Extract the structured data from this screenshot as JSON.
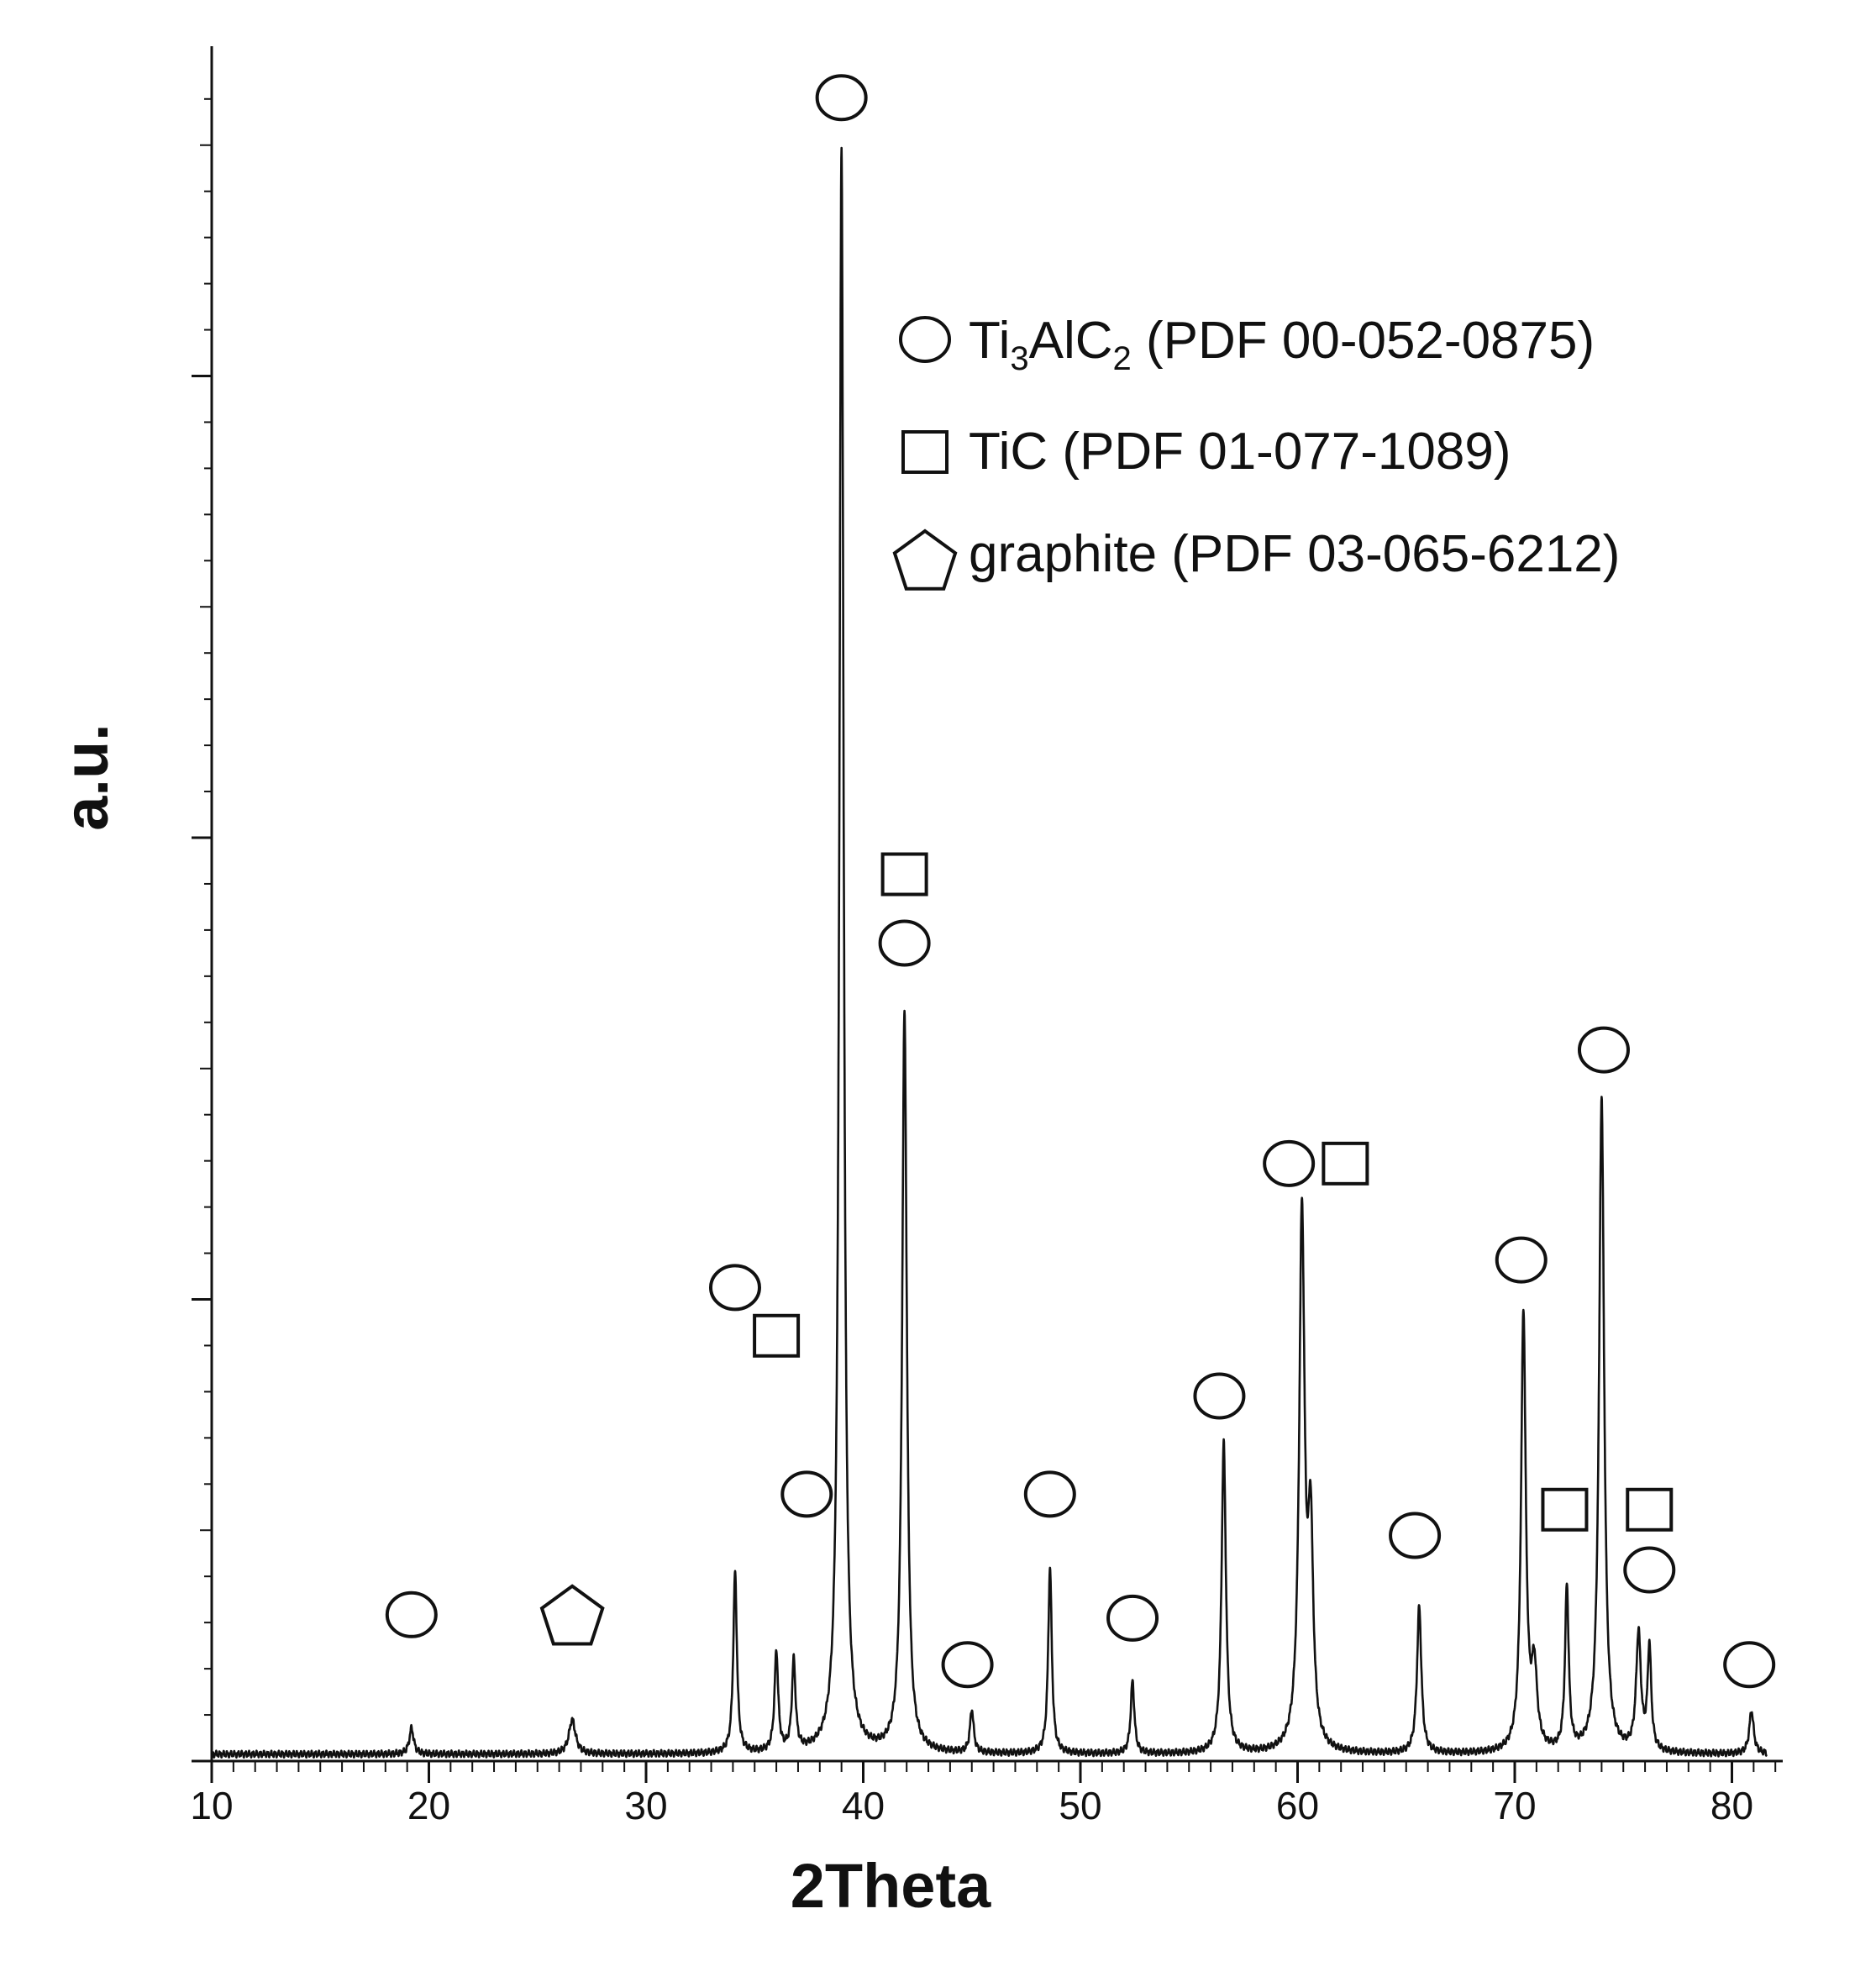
{
  "chart_data": {
    "type": "line",
    "title": "",
    "xlabel": "2Theta",
    "ylabel": "a.u.",
    "xlim": [
      10,
      82
    ],
    "ylim": [
      0,
      100
    ],
    "x_ticks": [
      10,
      20,
      30,
      40,
      50,
      60,
      70,
      80
    ],
    "grid": false,
    "legend_position": "top-right",
    "legend": [
      {
        "marker": "circle",
        "phase": "Ti3AlC2",
        "label_prefix": "Ti",
        "sub1": "3",
        "label_mid": "AlC",
        "sub2": "2",
        "label_suffix": " (PDF 00-052-0875)"
      },
      {
        "marker": "square",
        "phase": "TiC",
        "label_prefix": "TiC (PDF 01-077-1089)",
        "sub1": "",
        "label_mid": "",
        "sub2": "",
        "label_suffix": ""
      },
      {
        "marker": "pentagon",
        "phase": "graphite",
        "label_prefix": "graphite (PDF 03-065-6212)",
        "sub1": "",
        "label_mid": "",
        "sub2": "",
        "label_suffix": ""
      }
    ],
    "background": 0.4,
    "peaks": [
      {
        "x": 19.2,
        "h": 1.5,
        "w": 0.12
      },
      {
        "x": 26.6,
        "h": 2.0,
        "w": 0.18
      },
      {
        "x": 34.1,
        "h": 10.5,
        "w": 0.1
      },
      {
        "x": 36.0,
        "h": 5.8,
        "w": 0.1
      },
      {
        "x": 36.8,
        "h": 5.2,
        "w": 0.1
      },
      {
        "x": 39.0,
        "h": 93.0,
        "w": 0.12
      },
      {
        "x": 41.9,
        "h": 43.0,
        "w": 0.13
      },
      {
        "x": 45.0,
        "h": 2.5,
        "w": 0.1
      },
      {
        "x": 48.6,
        "h": 10.8,
        "w": 0.1
      },
      {
        "x": 52.4,
        "h": 4.2,
        "w": 0.1
      },
      {
        "x": 56.6,
        "h": 18.0,
        "w": 0.12
      },
      {
        "x": 60.2,
        "h": 31.0,
        "w": 0.15
      },
      {
        "x": 60.6,
        "h": 12.0,
        "w": 0.14
      },
      {
        "x": 65.6,
        "h": 8.5,
        "w": 0.12
      },
      {
        "x": 70.4,
        "h": 25.5,
        "w": 0.13
      },
      {
        "x": 70.9,
        "h": 4.5,
        "w": 0.15
      },
      {
        "x": 72.4,
        "h": 9.5,
        "w": 0.1
      },
      {
        "x": 74.0,
        "h": 38.0,
        "w": 0.14
      },
      {
        "x": 75.7,
        "h": 6.8,
        "w": 0.13
      },
      {
        "x": 76.2,
        "h": 6.0,
        "w": 0.1
      },
      {
        "x": 80.9,
        "h": 2.5,
        "w": 0.12
      }
    ],
    "markers": [
      {
        "shape": "circle",
        "x": 19.2,
        "y": 8.5
      },
      {
        "shape": "pentagon",
        "x": 26.6,
        "y": 8.5
      },
      {
        "shape": "circle",
        "x": 34.1,
        "y": 27.5
      },
      {
        "shape": "square",
        "x": 36.0,
        "y": 24.7
      },
      {
        "shape": "circle",
        "x": 37.4,
        "y": 15.5
      },
      {
        "shape": "circle",
        "x": 39.0,
        "y": 96.6
      },
      {
        "shape": "square",
        "x": 41.9,
        "y": 51.5
      },
      {
        "shape": "circle",
        "x": 41.9,
        "y": 47.5
      },
      {
        "shape": "circle",
        "x": 44.8,
        "y": 5.6
      },
      {
        "shape": "circle",
        "x": 48.6,
        "y": 15.5
      },
      {
        "shape": "circle",
        "x": 52.4,
        "y": 8.3
      },
      {
        "shape": "circle",
        "x": 56.4,
        "y": 21.2
      },
      {
        "shape": "circle",
        "x": 59.6,
        "y": 34.7
      },
      {
        "shape": "square",
        "x": 62.2,
        "y": 34.7
      },
      {
        "shape": "circle",
        "x": 65.4,
        "y": 13.1
      },
      {
        "shape": "circle",
        "x": 70.3,
        "y": 29.1
      },
      {
        "shape": "square",
        "x": 72.3,
        "y": 14.6
      },
      {
        "shape": "circle",
        "x": 74.1,
        "y": 41.3
      },
      {
        "shape": "square",
        "x": 76.2,
        "y": 14.6
      },
      {
        "shape": "circle",
        "x": 76.2,
        "y": 11.1
      },
      {
        "shape": "circle",
        "x": 80.8,
        "y": 5.6
      }
    ]
  }
}
